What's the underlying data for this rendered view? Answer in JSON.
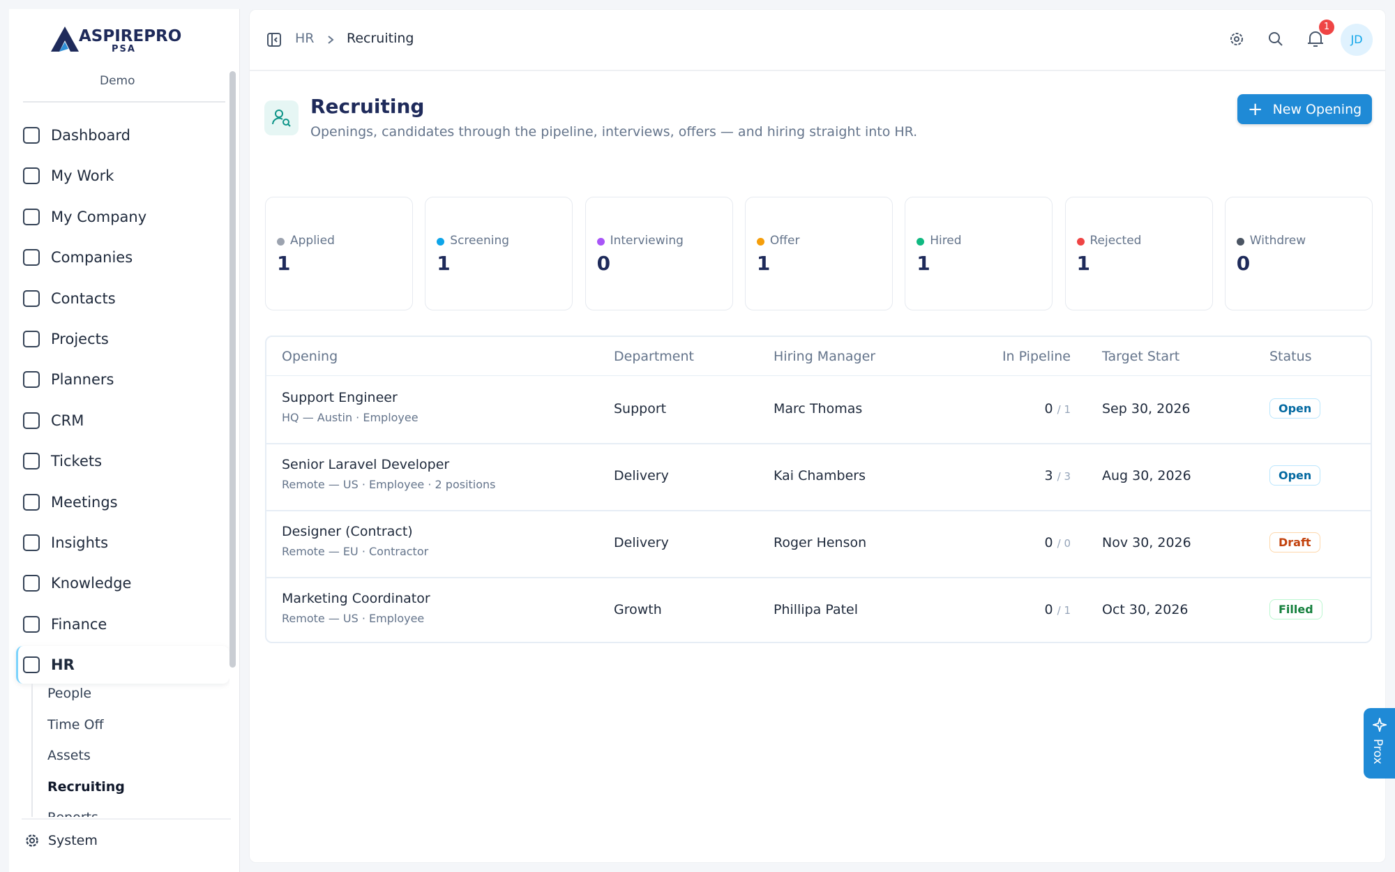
{
  "brand": {
    "name": "ASPIREPRO",
    "sub": "PSA",
    "workspace": "Demo"
  },
  "nav": [
    "Dashboard",
    "My Work",
    "My Company",
    "Companies",
    "Contacts",
    "Projects",
    "Planners",
    "CRM",
    "Tickets",
    "Meetings",
    "Insights",
    "Knowledge",
    "Finance",
    "HR"
  ],
  "active_nav": "HR",
  "subnav": [
    "People",
    "Time Off",
    "Assets",
    "Recruiting",
    "Reports"
  ],
  "active_subnav": "Recruiting",
  "system": "System",
  "breadcrumb": [
    "HR",
    "Recruiting"
  ],
  "notifications": "1",
  "avatar": "JD",
  "header": {
    "title": "Recruiting",
    "subtitle": "Openings, candidates through the pipeline, interviews, offers — and hiring straight into HR.",
    "button": "New Opening"
  },
  "stats": [
    {
      "label": "Applied",
      "value": 1,
      "color": "#9ca3af"
    },
    {
      "label": "Screening",
      "value": 1,
      "color": "#0ea5e9"
    },
    {
      "label": "Interviewing",
      "value": 0,
      "color": "#a855f7"
    },
    {
      "label": "Offer",
      "value": 1,
      "color": "#f59e0b"
    },
    {
      "label": "Hired",
      "value": 1,
      "color": "#10b981"
    },
    {
      "label": "Rejected",
      "value": 1,
      "color": "#ef4444"
    },
    {
      "label": "Withdrew",
      "value": 0,
      "color": "#4b5563"
    }
  ],
  "table": {
    "columns": [
      "Opening",
      "Department",
      "Hiring Manager",
      "In Pipeline",
      "Target Start",
      "Status"
    ],
    "rows": [
      {
        "title": "Support Engineer",
        "meta": "HQ — Austin · Employee",
        "department": "Support",
        "manager": "Marc Thomas",
        "pipeline": "0",
        "pipeline_of": "/ 1",
        "target": "Sep 30, 2026",
        "status": "Open"
      },
      {
        "title": "Senior Laravel Developer",
        "meta": "Remote — US · Employee · 2 positions",
        "department": "Delivery",
        "manager": "Kai Chambers",
        "pipeline": "3",
        "pipeline_of": "/ 3",
        "target": "Aug 30, 2026",
        "status": "Open"
      },
      {
        "title": "Designer (Contract)",
        "meta": "Remote — EU · Contractor",
        "department": "Delivery",
        "manager": "Roger Henson",
        "pipeline": "0",
        "pipeline_of": "/ 0",
        "target": "Nov 30, 2026",
        "status": "Draft"
      },
      {
        "title": "Marketing Coordinator",
        "meta": "Remote — US · Employee",
        "department": "Growth",
        "manager": "Phillipa Patel",
        "pipeline": "0",
        "pipeline_of": "/ 1",
        "target": "Oct 30, 2026",
        "status": "Filled"
      }
    ]
  },
  "assistant": "Prox"
}
